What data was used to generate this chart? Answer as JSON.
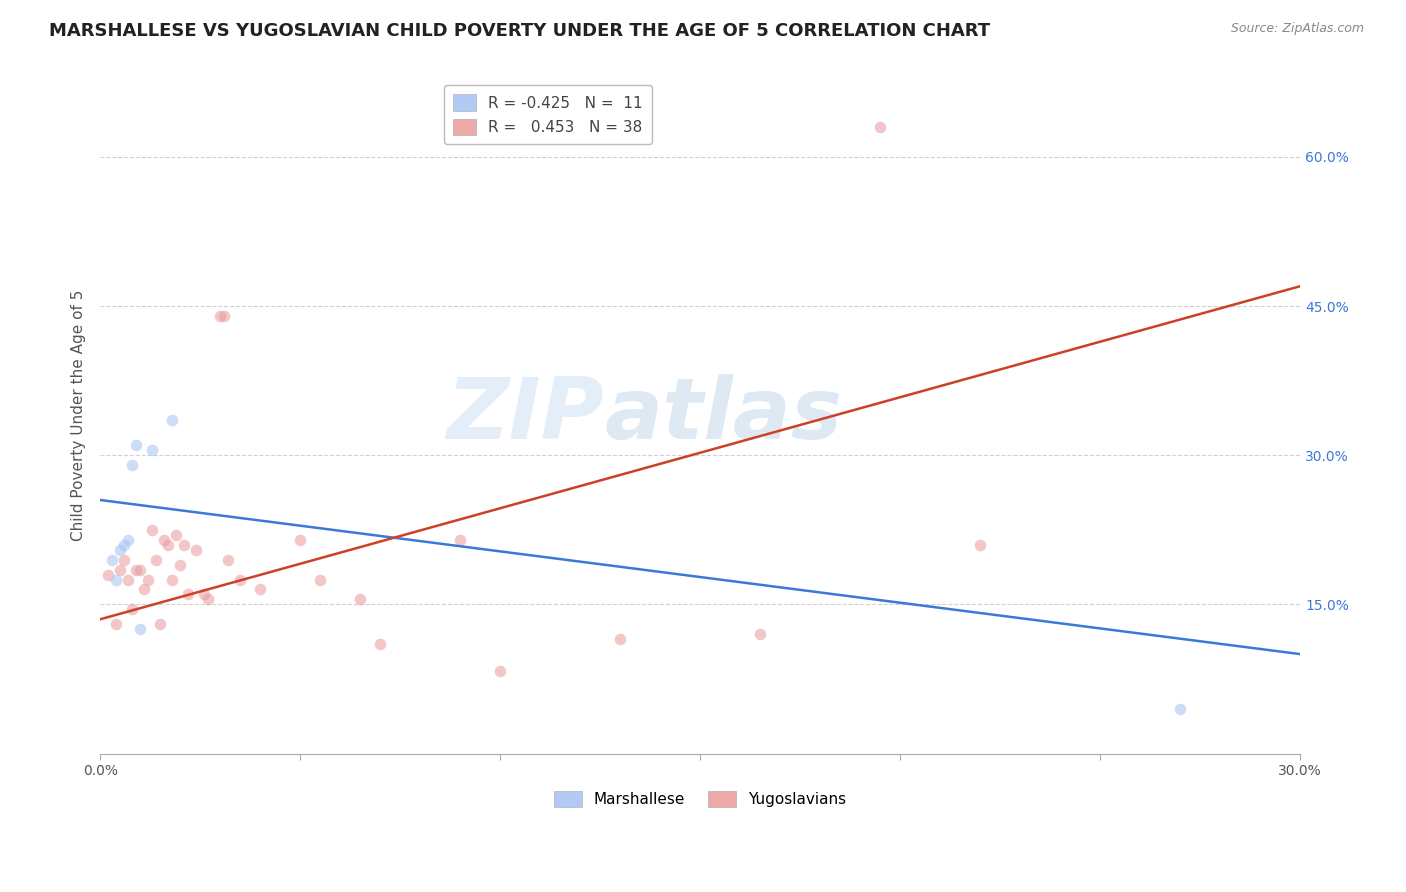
{
  "title": "MARSHALLESE VS YUGOSLAVIAN CHILD POVERTY UNDER THE AGE OF 5 CORRELATION CHART",
  "source": "Source: ZipAtlas.com",
  "ylabel": "Child Poverty Under the Age of 5",
  "xlim": [
    0.0,
    0.3
  ],
  "ylim": [
    0.0,
    0.68
  ],
  "xticks": [
    0.0,
    0.05,
    0.1,
    0.15,
    0.2,
    0.25,
    0.3
  ],
  "xtick_labels": [
    "0.0%",
    "",
    "",
    "",
    "",
    "",
    "30.0%"
  ],
  "yticks": [
    0.15,
    0.3,
    0.45,
    0.6
  ],
  "ytick_labels": [
    "15.0%",
    "30.0%",
    "45.0%",
    "60.0%"
  ],
  "legend_blue_r": "-0.425",
  "legend_blue_n": "11",
  "legend_pink_r": "0.453",
  "legend_pink_n": "38",
  "blue_color": "#a4c2f4",
  "pink_color": "#ea9999",
  "blue_line_color": "#3c78d8",
  "pink_line_color": "#cc4125",
  "watermark_zip": "ZIP",
  "watermark_atlas": "atlas",
  "blue_scatter_x": [
    0.003,
    0.004,
    0.005,
    0.006,
    0.007,
    0.008,
    0.009,
    0.01,
    0.013,
    0.018,
    0.27
  ],
  "blue_scatter_y": [
    0.195,
    0.175,
    0.205,
    0.21,
    0.215,
    0.29,
    0.31,
    0.125,
    0.305,
    0.335,
    0.045
  ],
  "pink_scatter_x": [
    0.002,
    0.004,
    0.005,
    0.006,
    0.007,
    0.008,
    0.009,
    0.01,
    0.011,
    0.012,
    0.013,
    0.014,
    0.015,
    0.016,
    0.017,
    0.018,
    0.019,
    0.02,
    0.021,
    0.022,
    0.024,
    0.026,
    0.027,
    0.03,
    0.031,
    0.032,
    0.035,
    0.04,
    0.05,
    0.055,
    0.065,
    0.07,
    0.09,
    0.1,
    0.13,
    0.165,
    0.195,
    0.22
  ],
  "pink_scatter_y": [
    0.18,
    0.13,
    0.185,
    0.195,
    0.175,
    0.145,
    0.185,
    0.185,
    0.165,
    0.175,
    0.225,
    0.195,
    0.13,
    0.215,
    0.21,
    0.175,
    0.22,
    0.19,
    0.21,
    0.16,
    0.205,
    0.16,
    0.155,
    0.44,
    0.44,
    0.195,
    0.175,
    0.165,
    0.215,
    0.175,
    0.155,
    0.11,
    0.215,
    0.083,
    0.115,
    0.12,
    0.63,
    0.21
  ],
  "blue_line_x0": 0.0,
  "blue_line_y0": 0.255,
  "blue_line_x1": 0.3,
  "blue_line_y1": 0.1,
  "pink_line_x0": 0.0,
  "pink_line_y0": 0.135,
  "pink_line_x1": 0.3,
  "pink_line_y1": 0.47,
  "grid_color": "#cccccc",
  "background_color": "#ffffff",
  "title_fontsize": 13,
  "label_fontsize": 11,
  "tick_fontsize": 10,
  "legend_fontsize": 11,
  "scatter_size": 70,
  "scatter_alpha": 0.55,
  "line_width": 1.8
}
